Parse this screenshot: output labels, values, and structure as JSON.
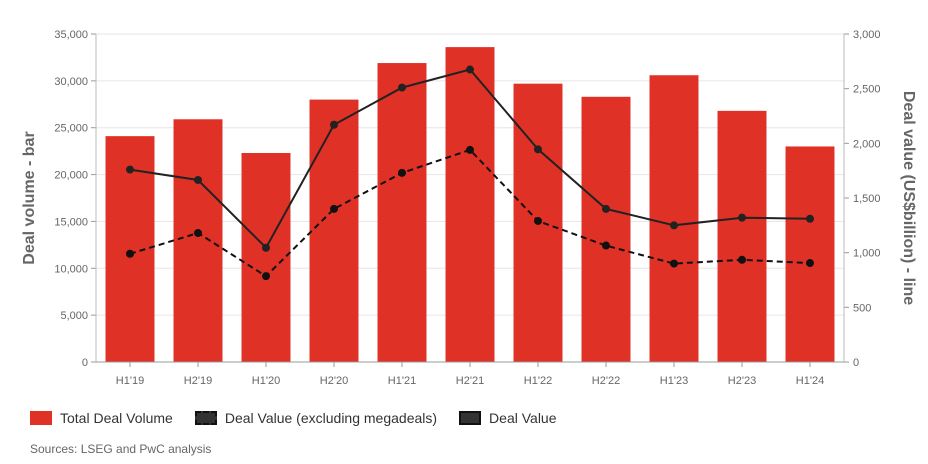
{
  "chart_data": {
    "type": "bar+line",
    "categories": [
      "H1'19",
      "H2'19",
      "H1'20",
      "H2'20",
      "H1'21",
      "H2'21",
      "H1'22",
      "H2'22",
      "H1'23",
      "H2'23",
      "H1'24"
    ],
    "ylabel_left": "Deal volume - bar",
    "ylabel_right": "Deal value (US$billion) - line",
    "ylim_left": [
      0,
      35000
    ],
    "ylim_right": [
      0,
      3000
    ],
    "yticks_left": [
      "0",
      "5,000",
      "10,000",
      "15,000",
      "20,000",
      "25,000",
      "30,000",
      "35,000"
    ],
    "yticks_right": [
      "0",
      "500",
      "1,000",
      "1,500",
      "2,000",
      "2,500",
      "3,000"
    ],
    "grid": true,
    "legend_position": "bottom-left",
    "series": [
      {
        "name": "Total Deal Volume",
        "kind": "bar",
        "axis": "left",
        "color": "#e03127",
        "values": [
          24100,
          25900,
          22300,
          28000,
          31900,
          33600,
          29700,
          28300,
          30600,
          26800,
          23000
        ]
      },
      {
        "name": "Deal Value (excluding megadeals)",
        "kind": "line-dashed",
        "axis": "right",
        "color": "#111111",
        "values": [
          990,
          1180,
          785,
          1400,
          1730,
          1940,
          1290,
          1065,
          900,
          935,
          905
        ]
      },
      {
        "name": "Deal Value",
        "kind": "line",
        "axis": "right",
        "color": "#222222",
        "values": [
          1760,
          1665,
          1045,
          2170,
          2510,
          2675,
          1945,
          1400,
          1250,
          1320,
          1310
        ]
      }
    ]
  },
  "source": "Sources: LSEG and PwC analysis"
}
